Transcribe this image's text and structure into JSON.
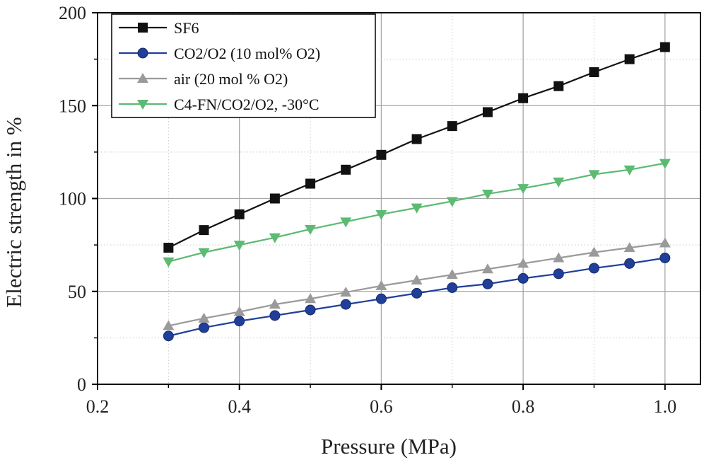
{
  "chart_data": {
    "type": "line",
    "title": "",
    "xlabel": "Pressure (MPa)",
    "ylabel": "Electric strength in %",
    "xlim": [
      0.2,
      1.05
    ],
    "ylim": [
      0,
      200
    ],
    "xticks": [
      "0.2",
      "0.4",
      "0.6",
      "0.8",
      "1.0"
    ],
    "yticks": [
      "0",
      "50",
      "100",
      "150",
      "200"
    ],
    "grid": true,
    "legend_position": "top-left",
    "x": [
      0.3,
      0.35,
      0.4,
      0.45,
      0.5,
      0.55,
      0.6,
      0.65,
      0.7,
      0.75,
      0.8,
      0.85,
      0.9,
      0.95,
      1.0
    ],
    "series": [
      {
        "name": "SF6",
        "color": "#111111",
        "marker": "square",
        "values": [
          73.5,
          83,
          91.5,
          100,
          108,
          115.5,
          123.5,
          132,
          139,
          146.5,
          154,
          160.5,
          168,
          175,
          181.5
        ]
      },
      {
        "name": "CO2/O2 (10 mol% O2)",
        "color": "#1f3f9a",
        "marker": "circle",
        "values": [
          26,
          30.5,
          34,
          37,
          40,
          43,
          46,
          49,
          52,
          54,
          57,
          59.5,
          62.5,
          65,
          68
        ]
      },
      {
        "name": "air (20 mol % O2)",
        "color": "#9a9a9a",
        "marker": "triangle-up",
        "values": [
          31.5,
          35.5,
          39,
          43,
          46,
          49.5,
          53,
          56,
          59,
          62,
          65,
          68,
          71,
          73.5,
          76
        ]
      },
      {
        "name": "C4-FN/CO2/O2, -30°C",
        "color": "#5cba72",
        "marker": "triangle-down",
        "values": [
          66,
          71,
          75,
          79,
          83.5,
          87.5,
          91.5,
          95,
          98.5,
          102.5,
          105.5,
          109,
          113,
          115.5,
          119
        ]
      }
    ]
  }
}
